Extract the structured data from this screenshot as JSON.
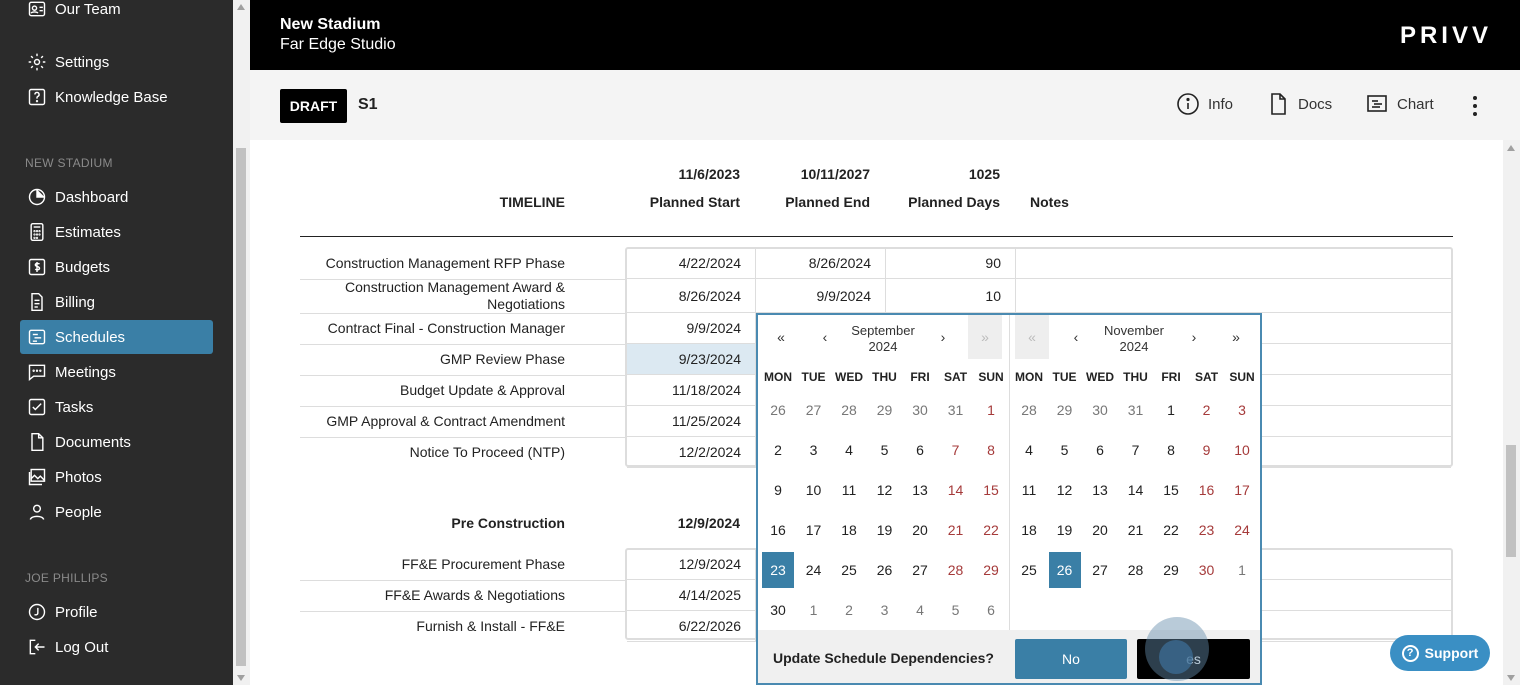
{
  "sidebar": {
    "top_items": [
      {
        "label": "Our Team",
        "icon": "team-card-icon"
      },
      {
        "label": "Settings",
        "icon": "gear-icon"
      },
      {
        "label": "Knowledge Base",
        "icon": "help-icon"
      }
    ],
    "section_project": "NEW STADIUM",
    "project_items": [
      {
        "label": "Dashboard",
        "icon": "pie-chart-icon"
      },
      {
        "label": "Estimates",
        "icon": "calculator-icon"
      },
      {
        "label": "Budgets",
        "icon": "dollar-icon"
      },
      {
        "label": "Billing",
        "icon": "invoice-icon"
      },
      {
        "label": "Schedules",
        "icon": "schedule-icon",
        "active": true
      },
      {
        "label": "Meetings",
        "icon": "chat-icon"
      },
      {
        "label": "Tasks",
        "icon": "checkbox-icon"
      },
      {
        "label": "Documents",
        "icon": "document-icon"
      },
      {
        "label": "Photos",
        "icon": "photos-icon"
      },
      {
        "label": "People",
        "icon": "person-icon"
      }
    ],
    "section_user": "JOE PHILLIPS",
    "user_items": [
      {
        "label": "Profile",
        "icon": "profile-icon"
      },
      {
        "label": "Log Out",
        "icon": "logout-icon"
      }
    ]
  },
  "header": {
    "project_title": "New Stadium",
    "company": "Far Edge Studio",
    "logo": "PRIVV"
  },
  "subbar": {
    "status": "DRAFT",
    "schedule_name": "S1",
    "actions": [
      {
        "label": "Info",
        "icon": "info-icon"
      },
      {
        "label": "Docs",
        "icon": "docs-icon"
      },
      {
        "label": "Chart",
        "icon": "chart-icon"
      }
    ]
  },
  "timeline": {
    "heading": "TIMELINE",
    "planned_start": "11/6/2023",
    "planned_end": "10/11/2027",
    "planned_days": "1025",
    "col_start": "Planned Start",
    "col_end": "Planned End",
    "col_days": "Planned Days",
    "col_notes": "Notes",
    "rows": [
      {
        "label": "Construction Management RFP Phase",
        "start": "4/22/2024",
        "end": "8/26/2024",
        "days": "90"
      },
      {
        "label": "Construction Management Award & Negotiations",
        "start": "8/26/2024",
        "end": "9/9/2024",
        "days": "10"
      },
      {
        "label": "Contract Final - Construction Manager",
        "start": "9/9/2024"
      },
      {
        "label": "GMP Review Phase",
        "start": "9/23/2024"
      },
      {
        "label": "Budget Update & Approval",
        "start": "11/18/2024"
      },
      {
        "label": "GMP Approval & Contract Amendment",
        "start": "11/25/2024"
      },
      {
        "label": "Notice To Proceed (NTP)",
        "start": "12/2/2024"
      }
    ]
  },
  "pre_construction": {
    "heading": "Pre Construction",
    "start": "12/9/2024",
    "rows": [
      {
        "label": "FF&E Procurement Phase",
        "start": "12/9/2024"
      },
      {
        "label": "FF&E Awards & Negotiations",
        "start": "4/14/2025"
      },
      {
        "label": "Furnish & Install - FF&E",
        "start": "6/22/2026"
      }
    ]
  },
  "datepicker": {
    "dow": [
      "MON",
      "TUE",
      "WED",
      "THU",
      "FRI",
      "SAT",
      "SUN"
    ],
    "nav": {
      "first": "«",
      "prev": "‹",
      "next": "›",
      "last": "»"
    },
    "left": {
      "month": "September",
      "year": "2024",
      "weeks": [
        [
          "26",
          "27",
          "28",
          "29",
          "30",
          "31",
          "1"
        ],
        [
          "2",
          "3",
          "4",
          "5",
          "6",
          "7",
          "8"
        ],
        [
          "9",
          "10",
          "11",
          "12",
          "13",
          "14",
          "15"
        ],
        [
          "16",
          "17",
          "18",
          "19",
          "20",
          "21",
          "22"
        ],
        [
          "23",
          "24",
          "25",
          "26",
          "27",
          "28",
          "29"
        ],
        [
          "30",
          "1",
          "2",
          "3",
          "4",
          "5",
          "6"
        ]
      ],
      "selected": "23"
    },
    "right": {
      "month": "November",
      "year": "2024",
      "weeks": [
        [
          "28",
          "29",
          "30",
          "31",
          "1",
          "2",
          "3"
        ],
        [
          "4",
          "5",
          "6",
          "7",
          "8",
          "9",
          "10"
        ],
        [
          "11",
          "12",
          "13",
          "14",
          "15",
          "16",
          "17"
        ],
        [
          "18",
          "19",
          "20",
          "21",
          "22",
          "23",
          "24"
        ],
        [
          "25",
          "26",
          "27",
          "28",
          "29",
          "30",
          "1"
        ]
      ],
      "selected": "26"
    },
    "question": "Update Schedule Dependencies?",
    "no_label": "No",
    "yes_label": "es"
  },
  "support_label": "Support",
  "colors": {
    "accent": "#3a7fa6",
    "sidebar_bg": "#2b2b2b",
    "weekend": "#a53a3a",
    "support": "#3a8fc4"
  }
}
